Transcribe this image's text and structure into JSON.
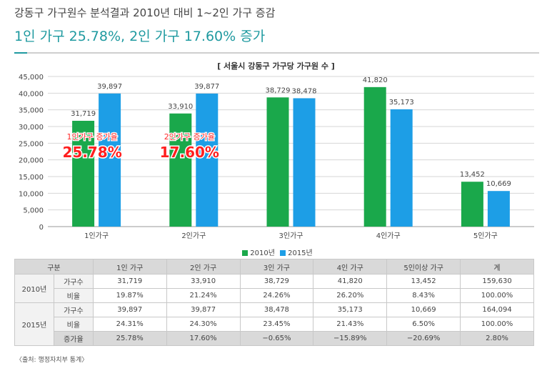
{
  "header": {
    "title": "강동구 가구원수 분석결과 2010년 대비 1~2인 가구 증감",
    "subtitle": "1인 가구 25.78%, 2인 가구 17.60% 증가"
  },
  "chart_data": {
    "type": "bar",
    "title": "[ 서울시 강동구 가구당 가구원 수 ]",
    "categories": [
      "1인가구",
      "2인가구",
      "3인가구",
      "4인가구",
      "5인가구"
    ],
    "series": [
      {
        "name": "2010년",
        "values": [
          31719,
          33910,
          38729,
          41820,
          13452
        ],
        "color": "#1aa84b"
      },
      {
        "name": "2015년",
        "values": [
          39897,
          39877,
          38478,
          35173,
          10669
        ],
        "color": "#1d9ee6"
      }
    ],
    "value_labels": [
      [
        "31,719",
        "33,910",
        "38,729",
        "41,820",
        "13,452"
      ],
      [
        "39,897",
        "39,877",
        "38,478",
        "35,173",
        "10,669"
      ]
    ],
    "ylim": [
      0,
      45000
    ],
    "yticks": [
      0,
      5000,
      10000,
      15000,
      20000,
      25000,
      30000,
      35000,
      40000,
      45000
    ],
    "ytick_labels": [
      "0",
      "5,000",
      "10,000",
      "15,000",
      "20,000",
      "25,000",
      "30,000",
      "35,000",
      "40,000",
      "45,000"
    ],
    "grid": true,
    "legend": "bottom",
    "annotations": [
      {
        "category": "1인가구",
        "label": "1인가구 증가율",
        "value": "25.78%"
      },
      {
        "category": "2인가구",
        "label": "2인가구 증가율",
        "value": "17.60%"
      }
    ]
  },
  "table": {
    "headers": [
      "구분",
      "1인 가구",
      "2인 가구",
      "3인 가구",
      "4인 가구",
      "5인이상 가구",
      "계"
    ],
    "groups": [
      {
        "year": "2010년",
        "rows": [
          {
            "label": "가구수",
            "values": [
              "31,719",
              "33,910",
              "38,729",
              "41,820",
              "13,452",
              "159,630"
            ]
          },
          {
            "label": "비율",
            "values": [
              "19.87%",
              "21.24%",
              "24.26%",
              "26.20%",
              "8.43%",
              "100.00%"
            ]
          }
        ]
      },
      {
        "year": "2015년",
        "rows": [
          {
            "label": "가구수",
            "values": [
              "39,897",
              "39,877",
              "38,478",
              "35,173",
              "10,669",
              "164,094"
            ]
          },
          {
            "label": "비율",
            "values": [
              "24.31%",
              "24.30%",
              "23.45%",
              "21.43%",
              "6.50%",
              "100.00%"
            ]
          },
          {
            "label": "증가율",
            "values": [
              "25.78%",
              "17.60%",
              "−0.65%",
              "−15.89%",
              "−20.69%",
              "2.80%"
            ]
          }
        ]
      }
    ]
  },
  "source": "〈출처: 행정자치부 통계〉"
}
